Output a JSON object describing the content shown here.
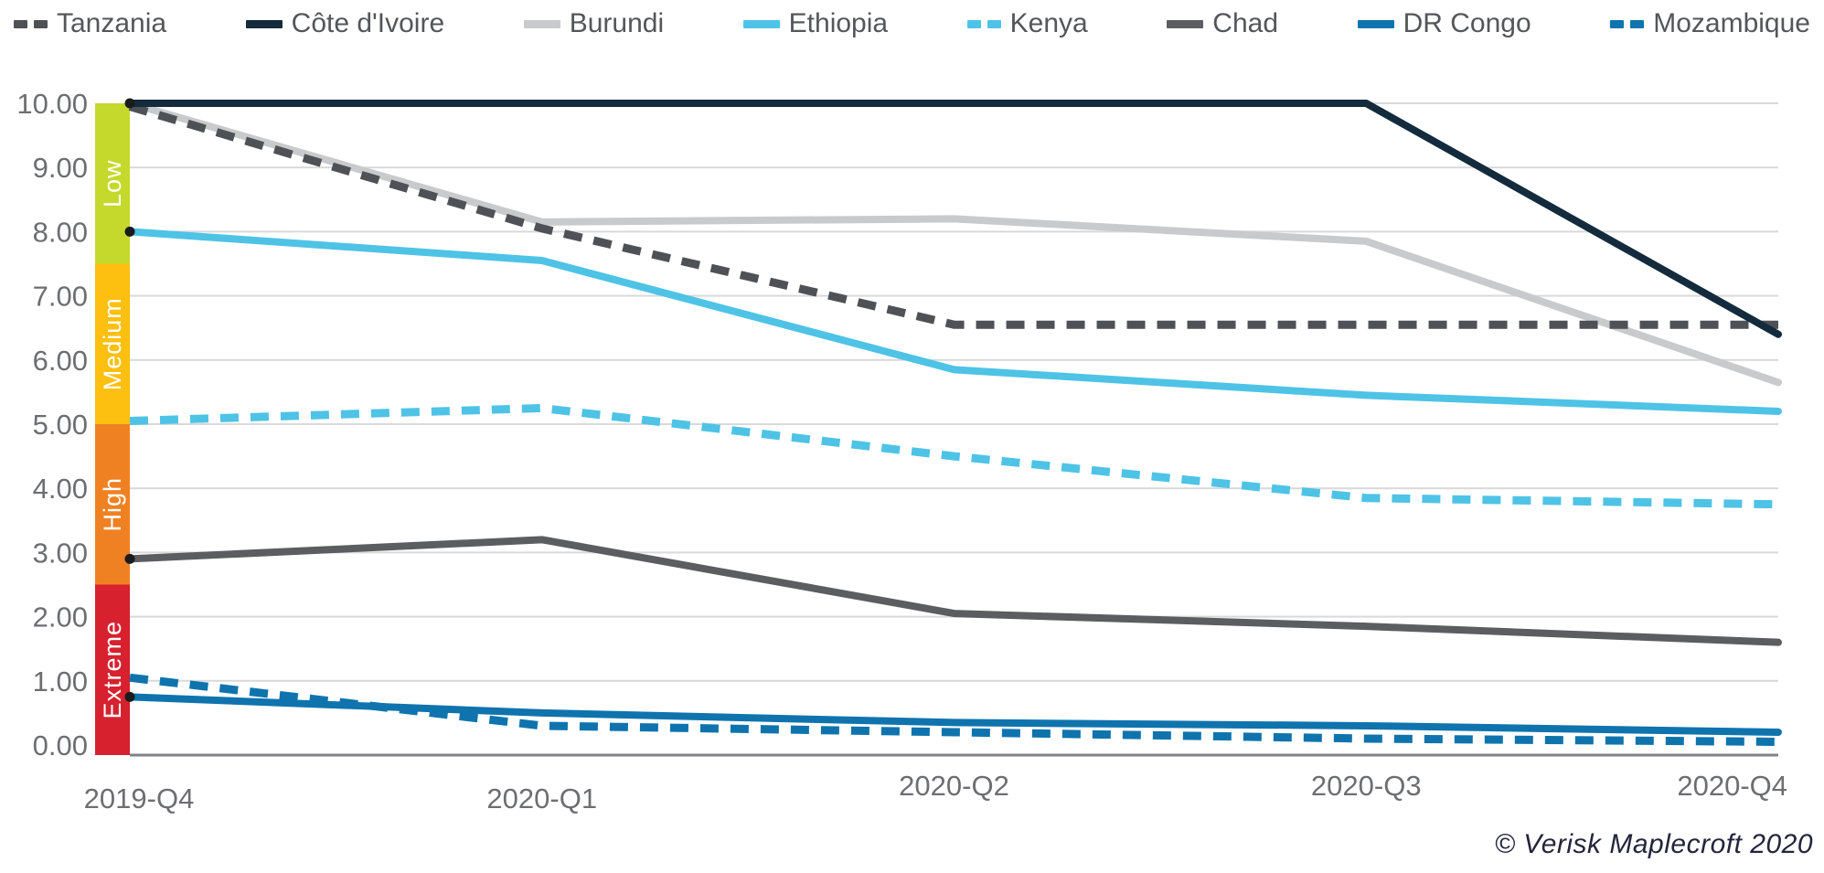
{
  "copyright": "© Verisk Maplecroft 2020",
  "colors": {
    "gridline": "#d9d9d9",
    "axis_line": "#808285",
    "tick_text": "#6d6e71",
    "band_label_text": "#ffffff",
    "legend_text": "#54565a"
  },
  "chart_data": {
    "type": "line",
    "title": "",
    "xlabel": "",
    "ylabel": "",
    "categories": [
      "2019-Q4",
      "2020-Q1",
      "2020-Q2",
      "2020-Q3",
      "2020-Q4"
    ],
    "ylim": [
      0,
      10
    ],
    "y_tick_labels": [
      "10.00",
      "9.00",
      "8.00",
      "7.00",
      "6.00",
      "5.00",
      "4.00",
      "3.00",
      "2.00",
      "1.00",
      "0.00"
    ],
    "grid": "horizontal",
    "legend_position": "top",
    "risk_bands": [
      {
        "label": "Low",
        "from": 7.5,
        "to": 10.0,
        "color": "#c5d92d"
      },
      {
        "label": "Medium",
        "from": 5.0,
        "to": 7.5,
        "color": "#fdc010"
      },
      {
        "label": "High",
        "from": 2.5,
        "to": 5.0,
        "color": "#f08122"
      },
      {
        "label": "Extreme",
        "from": 0.0,
        "to": 2.5,
        "color": "#d7212e"
      }
    ],
    "series": [
      {
        "name": "Tanzania",
        "color": "#4e5256",
        "dash": true,
        "start_dot": false,
        "values": [
          9.95,
          8.05,
          6.55,
          6.55,
          6.55
        ]
      },
      {
        "name": "Côte d'Ivoire",
        "color": "#132b3d",
        "dash": false,
        "start_dot": true,
        "values": [
          10.0,
          10.0,
          10.0,
          10.0,
          6.4
        ]
      },
      {
        "name": "Burundi",
        "color": "#c9cacb",
        "dash": false,
        "start_dot": false,
        "values": [
          10.0,
          8.15,
          8.2,
          7.85,
          5.65
        ]
      },
      {
        "name": "Ethiopia",
        "color": "#4ec3e6",
        "dash": false,
        "start_dot": true,
        "values": [
          8.0,
          7.55,
          5.85,
          5.45,
          5.2
        ]
      },
      {
        "name": "Kenya",
        "color": "#4ec3e6",
        "dash": true,
        "start_dot": false,
        "values": [
          5.05,
          5.25,
          4.5,
          3.85,
          3.75
        ]
      },
      {
        "name": "Chad",
        "color": "#5b5d60",
        "dash": false,
        "start_dot": true,
        "values": [
          2.9,
          3.2,
          2.05,
          1.85,
          1.6
        ]
      },
      {
        "name": "DR Congo",
        "color": "#0f74ad",
        "dash": false,
        "start_dot": true,
        "values": [
          0.75,
          0.5,
          0.35,
          0.3,
          0.2
        ]
      },
      {
        "name": "Mozambique",
        "color": "#0f74ad",
        "dash": true,
        "start_dot": false,
        "values": [
          1.05,
          0.3,
          0.2,
          0.1,
          0.05
        ]
      }
    ],
    "draw_order": [
      2,
      0,
      1,
      3,
      4,
      5,
      6,
      7
    ]
  }
}
